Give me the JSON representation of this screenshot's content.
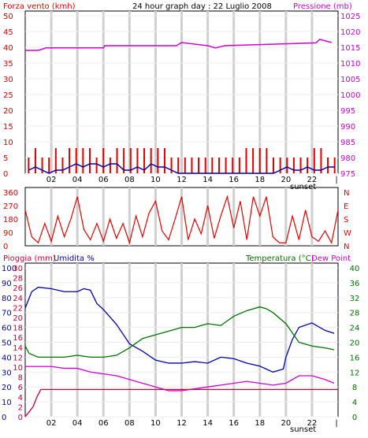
{
  "colors": {
    "wind": "#e00000",
    "pressure": "#d000d0",
    "humidity_line": "#0000aa",
    "temperature": "#007000",
    "dewpoint": "#d000d0",
    "rain": "#cc0033",
    "grid": "#cfcfcf",
    "frame": "#000000"
  },
  "header": {
    "title": "24 hour graph day : 22 Luglio 2008",
    "wind_label": "Forza vento (kmh)",
    "pressure_label": "Pressione (mb)"
  },
  "bottom_header": {
    "rain_label": "Pioggia (mm)",
    "humidity_label": "Umidita %",
    "temperature_label": "Temperatura (°C)",
    "dewpoint_label": "Dew Point"
  },
  "sunset_label": "sunset",
  "chart_data": [
    {
      "type": "line",
      "title": "24 hour graph day : 22 Luglio 2008",
      "x_ticks": [
        "02",
        "04",
        "06",
        "08",
        "10",
        "12",
        "14",
        "16",
        "18",
        "20",
        "22"
      ],
      "left_axis": {
        "label": "Forza vento (kmh)",
        "range": [
          0,
          50
        ],
        "ticks": [
          0,
          5,
          10,
          15,
          20,
          25,
          30,
          35,
          40,
          45,
          50
        ]
      },
      "right_axis": {
        "label": "Pressione (mb)",
        "range": [
          975,
          1025
        ],
        "ticks": [
          975,
          980,
          985,
          990,
          995,
          1000,
          1005,
          1010,
          1015,
          1020,
          1025
        ]
      },
      "series": [
        {
          "name": "Pressione (mb)",
          "x": [
            0,
            1,
            1.6,
            6,
            6.1,
            11.6,
            12,
            14,
            14.6,
            15,
            15.3,
            22.3,
            22.6,
            23.5
          ],
          "y": [
            1014,
            1014,
            1014.8,
            1014.8,
            1015.5,
            1015.5,
            1016.5,
            1015.5,
            1014.8,
            1015.2,
            1015.5,
            1016.4,
            1017.5,
            1016.5
          ]
        }
      ],
      "wind_gust_max": [
        5,
        8,
        5,
        5,
        8,
        5,
        8,
        8,
        8,
        8,
        5,
        8,
        5,
        8,
        8,
        8,
        8,
        8,
        8,
        8,
        8,
        5,
        5,
        5,
        5,
        5,
        5,
        5,
        5,
        5,
        5,
        5,
        8,
        8,
        8,
        8,
        5,
        5,
        5,
        5,
        5,
        5,
        8,
        8,
        5,
        5
      ],
      "wind_avg": [
        1,
        2,
        1,
        0,
        1,
        1,
        2,
        3,
        2,
        3,
        3,
        2,
        3,
        3,
        1,
        1,
        2,
        1,
        3,
        2,
        2,
        1,
        0,
        0,
        0,
        0,
        0,
        0,
        0,
        0,
        0,
        0,
        0,
        0,
        0,
        0,
        0,
        1,
        2,
        1,
        1,
        2,
        1,
        1,
        2,
        2
      ],
      "grid": true
    },
    {
      "type": "line",
      "left_axis": {
        "range": [
          0,
          360
        ],
        "ticks": [
          0,
          90,
          180,
          270,
          360
        ]
      },
      "right_axis": {
        "ticks": [
          "N",
          "W",
          "S",
          "E",
          "N"
        ]
      },
      "series": [
        {
          "name": "Direzione vento",
          "x": [
            0,
            0.5,
            1,
            1.5,
            2,
            2.5,
            3,
            3.5,
            4,
            4.5,
            5,
            5.5,
            6,
            6.5,
            7,
            7.5,
            8,
            8.5,
            9,
            9.5,
            10,
            10.5,
            11,
            11.5,
            12,
            12.5,
            13,
            13.5,
            14,
            14.5,
            15,
            15.5,
            16,
            16.5,
            17,
            17.5,
            18,
            18.5,
            19,
            19.5,
            20,
            20.5,
            21,
            21.5,
            22,
            22.5,
            23,
            23.5,
            24
          ],
          "y": [
            240,
            60,
            20,
            150,
            30,
            200,
            60,
            180,
            330,
            110,
            40,
            150,
            30,
            180,
            50,
            150,
            20,
            200,
            60,
            220,
            300,
            100,
            40,
            180,
            330,
            40,
            180,
            80,
            270,
            50,
            200,
            330,
            120,
            300,
            40,
            330,
            200,
            330,
            60,
            20,
            20,
            200,
            40,
            240,
            60,
            30,
            100,
            20,
            240
          ]
        }
      ]
    },
    {
      "type": "line",
      "x_ticks": [
        "02",
        "04",
        "06",
        "08",
        "10",
        "12",
        "14",
        "16",
        "18",
        "20",
        "22"
      ],
      "left_axis_rain": {
        "label": "Pioggia (mm)",
        "range": [
          0,
          30
        ],
        "ticks": [
          0,
          2,
          4,
          6,
          8,
          10,
          12,
          14,
          16,
          18,
          20,
          22,
          24,
          26,
          28,
          30
        ]
      },
      "left_axis_humidity": {
        "label": "Umidita %",
        "range": [
          0,
          100
        ],
        "ticks": [
          0,
          10,
          20,
          30,
          40,
          50,
          60,
          70,
          80,
          90,
          100
        ]
      },
      "right_axis": {
        "label": "Temperatura (°C)",
        "range": [
          0,
          40
        ],
        "ticks": [
          0,
          4,
          8,
          12,
          16,
          20,
          24,
          28,
          32,
          36,
          40
        ]
      },
      "series": [
        {
          "name": "Umidita %",
          "x": [
            0,
            0.5,
            1,
            2,
            3,
            4,
            4.5,
            5,
            5.5,
            6,
            7,
            8,
            9,
            10,
            11,
            12,
            13,
            14,
            15,
            16,
            17,
            18,
            19,
            19.8,
            20,
            20.5,
            21,
            22,
            23,
            23.7
          ],
          "y": [
            73,
            84,
            87,
            86,
            84,
            84,
            86,
            85,
            76,
            72,
            62,
            49,
            44,
            38,
            36,
            36,
            37,
            36,
            40,
            39,
            36,
            34,
            30,
            32,
            40,
            52,
            60,
            63,
            58,
            56
          ]
        },
        {
          "name": "Temperatura (°C)",
          "x": [
            0,
            0.3,
            1,
            2,
            3,
            4,
            5,
            6,
            7,
            8,
            9,
            10,
            11,
            12,
            13,
            14,
            15,
            16,
            17,
            18,
            18.5,
            19,
            20,
            21,
            22,
            23,
            23.7
          ],
          "y": [
            19,
            17,
            16,
            16,
            16,
            16.5,
            16,
            16,
            16.5,
            18.5,
            21,
            22,
            23,
            24,
            24,
            25,
            24.5,
            27,
            28.5,
            29.5,
            29,
            28,
            25,
            20,
            19,
            18.5,
            18
          ]
        },
        {
          "name": "Dew Point",
          "x": [
            0,
            1,
            2,
            3,
            4,
            5,
            6,
            7,
            8,
            9,
            10,
            11,
            12,
            13,
            14,
            15,
            16,
            17,
            18,
            19,
            20,
            21,
            22,
            23,
            23.7
          ],
          "y": [
            13.5,
            13.5,
            13.5,
            13,
            13,
            12,
            11.5,
            11,
            10,
            9,
            8,
            7,
            7,
            7.5,
            8,
            8.5,
            9,
            9.5,
            9,
            8.5,
            9,
            11,
            11,
            10,
            9
          ]
        },
        {
          "name": "Pioggia (mm)",
          "x": [
            0,
            0.3,
            0.6,
            0.9,
            1.2,
            24
          ],
          "y": [
            0,
            1,
            2,
            4,
            5.5,
            5.5
          ]
        }
      ],
      "grid": true
    }
  ]
}
